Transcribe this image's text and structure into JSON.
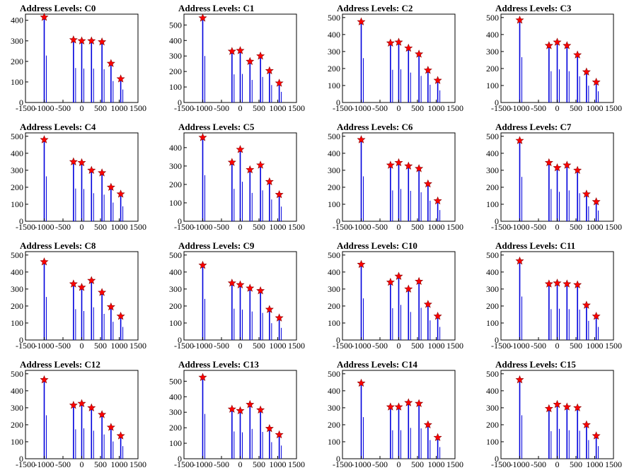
{
  "colors": {
    "spike": "#0000dd",
    "marker_fill": "#ff0000",
    "marker_stroke": "#880000",
    "axis": "#000000"
  },
  "chart_data": [
    {
      "type": "bar",
      "title": "Address Levels: C0",
      "xlim": [
        -1500,
        1500
      ],
      "ylim": [
        0,
        430
      ],
      "xticks": [
        -1500,
        -1000,
        -500,
        0,
        500,
        1000,
        1500
      ],
      "xtick_labels": [
        "-1500",
        "-1000",
        "-500",
        "0",
        "500",
        "1000",
        "1500"
      ],
      "yticks": [
        0,
        100,
        200,
        300,
        400
      ],
      "ytick_labels": [
        "0",
        "100",
        "200",
        "300",
        "400"
      ],
      "peaks": {
        "x": [
          -1000,
          -220,
          0,
          260,
          540,
          780,
          1040
        ],
        "y": [
          415,
          305,
          300,
          300,
          295,
          190,
          115
        ]
      }
    },
    {
      "type": "bar",
      "title": "Address Levels: C1",
      "xlim": [
        -1500,
        1500
      ],
      "ylim": [
        0,
        570
      ],
      "xticks": [
        -1500,
        -1000,
        -500,
        0,
        500,
        1000,
        1500
      ],
      "xtick_labels": [
        "-1500",
        "-1000",
        "-500",
        "0",
        "500",
        "1000",
        "1500"
      ],
      "yticks": [
        0,
        100,
        200,
        300,
        400,
        500
      ],
      "ytick_labels": [
        "0",
        "100",
        "200",
        "300",
        "400",
        "500"
      ],
      "peaks": {
        "x": [
          -1000,
          -220,
          0,
          260,
          540,
          780,
          1040
        ],
        "y": [
          545,
          330,
          335,
          265,
          300,
          205,
          125
        ]
      }
    },
    {
      "type": "bar",
      "title": "Address Levels: C2",
      "xlim": [
        -1500,
        1500
      ],
      "ylim": [
        0,
        520
      ],
      "xticks": [
        -1500,
        -1000,
        -500,
        0,
        500,
        1000,
        1500
      ],
      "xtick_labels": [
        "-1500",
        "-1000",
        "-500",
        "0",
        "500",
        "1000",
        "1500"
      ],
      "yticks": [
        0,
        100,
        200,
        300,
        400,
        500
      ],
      "ytick_labels": [
        "0",
        "100",
        "200",
        "300",
        "400",
        "500"
      ],
      "peaks": {
        "x": [
          -1000,
          -220,
          0,
          260,
          540,
          780,
          1040
        ],
        "y": [
          475,
          350,
          355,
          320,
          285,
          190,
          130
        ]
      }
    },
    {
      "type": "bar",
      "title": "Address Levels: C3",
      "xlim": [
        -1500,
        1500
      ],
      "ylim": [
        0,
        520
      ],
      "xticks": [
        -1500,
        -1000,
        -500,
        0,
        500,
        1000,
        1500
      ],
      "xtick_labels": [
        "-1500",
        "-1000",
        "-500",
        "0",
        "500",
        "1000",
        "1500"
      ],
      "yticks": [
        0,
        100,
        200,
        300,
        400,
        500
      ],
      "ytick_labels": [
        "0",
        "100",
        "200",
        "300",
        "400",
        "500"
      ],
      "peaks": {
        "x": [
          -1000,
          -220,
          0,
          260,
          540,
          780,
          1040
        ],
        "y": [
          485,
          335,
          355,
          335,
          280,
          180,
          120
        ]
      }
    },
    {
      "type": "bar",
      "title": "Address Levels: C4",
      "xlim": [
        -1500,
        1500
      ],
      "ylim": [
        0,
        520
      ],
      "xticks": [
        -1500,
        -1000,
        -500,
        0,
        500,
        1000,
        1500
      ],
      "xtick_labels": [
        "-1500",
        "-1000",
        "-500",
        "0",
        "500",
        "1000",
        "1500"
      ],
      "yticks": [
        0,
        100,
        200,
        300,
        400,
        500
      ],
      "ytick_labels": [
        "0",
        "100",
        "200",
        "300",
        "400",
        "500"
      ],
      "peaks": {
        "x": [
          -1000,
          -220,
          0,
          260,
          540,
          780,
          1040
        ],
        "y": [
          480,
          350,
          345,
          300,
          285,
          200,
          160
        ]
      }
    },
    {
      "type": "bar",
      "title": "Address Levels: C5",
      "xlim": [
        -1500,
        1500
      ],
      "ylim": [
        0,
        480
      ],
      "xticks": [
        -1500,
        -1000,
        -500,
        0,
        500,
        1000,
        1500
      ],
      "xtick_labels": [
        "-1500",
        "-1000",
        "-500",
        "0",
        "500",
        "1000",
        "1500"
      ],
      "yticks": [
        0,
        100,
        200,
        300,
        400
      ],
      "ytick_labels": [
        "0",
        "100",
        "200",
        "300",
        "400"
      ],
      "peaks": {
        "x": [
          -1000,
          -220,
          0,
          260,
          540,
          780,
          1040
        ],
        "y": [
          455,
          320,
          390,
          280,
          305,
          215,
          145
        ]
      }
    },
    {
      "type": "bar",
      "title": "Address Levels: C6",
      "xlim": [
        -1500,
        1500
      ],
      "ylim": [
        0,
        520
      ],
      "xticks": [
        -1500,
        -1000,
        -500,
        0,
        500,
        1000,
        1500
      ],
      "xtick_labels": [
        "-1500",
        "-1000",
        "-500",
        "0",
        "500",
        "1000",
        "1500"
      ],
      "yticks": [
        0,
        100,
        200,
        300,
        400,
        500
      ],
      "ytick_labels": [
        "0",
        "100",
        "200",
        "300",
        "400",
        "500"
      ],
      "peaks": {
        "x": [
          -1000,
          -220,
          0,
          260,
          540,
          780,
          1040
        ],
        "y": [
          480,
          330,
          345,
          325,
          310,
          220,
          120
        ]
      }
    },
    {
      "type": "bar",
      "title": "Address Levels: C7",
      "xlim": [
        -1500,
        1500
      ],
      "ylim": [
        0,
        520
      ],
      "xticks": [
        -1500,
        -1000,
        -500,
        0,
        500,
        1000,
        1500
      ],
      "xtick_labels": [
        "-1500",
        "-1000",
        "-500",
        "0",
        "500",
        "1000",
        "1500"
      ],
      "yticks": [
        0,
        100,
        200,
        300,
        400,
        500
      ],
      "ytick_labels": [
        "0",
        "100",
        "200",
        "300",
        "400",
        "500"
      ],
      "peaks": {
        "x": [
          -1000,
          -220,
          0,
          260,
          540,
          780,
          1040
        ],
        "y": [
          475,
          345,
          315,
          330,
          300,
          160,
          115
        ]
      }
    },
    {
      "type": "bar",
      "title": "Address Levels: C8",
      "xlim": [
        -1500,
        1500
      ],
      "ylim": [
        0,
        520
      ],
      "xticks": [
        -1500,
        -1000,
        -500,
        0,
        500,
        1000,
        1500
      ],
      "xtick_labels": [
        "-1500",
        "-1000",
        "-500",
        "0",
        "500",
        "1000",
        "1500"
      ],
      "yticks": [
        0,
        100,
        200,
        300,
        400,
        500
      ],
      "ytick_labels": [
        "0",
        "100",
        "200",
        "300",
        "400",
        "500"
      ],
      "peaks": {
        "x": [
          -1000,
          -220,
          0,
          260,
          540,
          780,
          1040
        ],
        "y": [
          460,
          330,
          310,
          350,
          280,
          195,
          140
        ]
      }
    },
    {
      "type": "bar",
      "title": "Address Levels: C9",
      "xlim": [
        -1500,
        1500
      ],
      "ylim": [
        0,
        520
      ],
      "xticks": [
        -1500,
        -1000,
        -500,
        0,
        500,
        1000,
        1500
      ],
      "xtick_labels": [
        "-1500",
        "-1000",
        "-500",
        "0",
        "500",
        "1000",
        "1500"
      ],
      "yticks": [
        0,
        100,
        200,
        300,
        400,
        500
      ],
      "ytick_labels": [
        "0",
        "100",
        "200",
        "300",
        "400",
        "500"
      ],
      "peaks": {
        "x": [
          -1000,
          -220,
          0,
          260,
          540,
          780,
          1040
        ],
        "y": [
          440,
          335,
          325,
          305,
          290,
          180,
          130
        ]
      }
    },
    {
      "type": "bar",
      "title": "Address Levels: C10",
      "xlim": [
        -1500,
        1500
      ],
      "ylim": [
        0,
        520
      ],
      "xticks": [
        -1500,
        -1000,
        -500,
        0,
        500,
        1000,
        1500
      ],
      "xtick_labels": [
        "-1500",
        "-1000",
        "-500",
        "0",
        "500",
        "1000",
        "1500"
      ],
      "yticks": [
        0,
        100,
        200,
        300,
        400,
        500
      ],
      "ytick_labels": [
        "0",
        "100",
        "200",
        "300",
        "400",
        "500"
      ],
      "peaks": {
        "x": [
          -1000,
          -220,
          0,
          260,
          540,
          780,
          1040
        ],
        "y": [
          445,
          340,
          375,
          300,
          345,
          210,
          140
        ]
      }
    },
    {
      "type": "bar",
      "title": "Address Levels: C11",
      "xlim": [
        -1500,
        1500
      ],
      "ylim": [
        0,
        520
      ],
      "xticks": [
        -1500,
        -1000,
        -500,
        0,
        500,
        1000,
        1500
      ],
      "xtick_labels": [
        "-1500",
        "-1000",
        "-500",
        "0",
        "500",
        "1000",
        "1500"
      ],
      "yticks": [
        0,
        100,
        200,
        300,
        400,
        500
      ],
      "ytick_labels": [
        "0",
        "100",
        "200",
        "300",
        "400",
        "500"
      ],
      "peaks": {
        "x": [
          -1000,
          -220,
          0,
          260,
          540,
          780,
          1040
        ],
        "y": [
          465,
          330,
          335,
          330,
          325,
          205,
          140
        ]
      }
    },
    {
      "type": "bar",
      "title": "Address Levels: C12",
      "xlim": [
        -1500,
        1500
      ],
      "ylim": [
        0,
        520
      ],
      "xticks": [
        -1500,
        -1000,
        -500,
        0,
        500,
        1000,
        1500
      ],
      "xtick_labels": [
        "-1500",
        "-1000",
        "-500",
        "0",
        "500",
        "1000",
        "1500"
      ],
      "yticks": [
        0,
        100,
        200,
        300,
        400,
        500
      ],
      "ytick_labels": [
        "0",
        "100",
        "200",
        "300",
        "400",
        "500"
      ],
      "peaks": {
        "x": [
          -1000,
          -220,
          0,
          260,
          540,
          780,
          1040
        ],
        "y": [
          465,
          315,
          325,
          300,
          260,
          185,
          135
        ]
      }
    },
    {
      "type": "bar",
      "title": "Address Levels: C13",
      "xlim": [
        -1500,
        1500
      ],
      "ylim": [
        0,
        570
      ],
      "xticks": [
        -1500,
        -1000,
        -500,
        0,
        500,
        1000,
        1500
      ],
      "xtick_labels": [
        "-1500",
        "-1000",
        "-500",
        "0",
        "500",
        "1000",
        "1500"
      ],
      "yticks": [
        0,
        100,
        200,
        300,
        400,
        500
      ],
      "ytick_labels": [
        "0",
        "100",
        "200",
        "300",
        "400",
        "500"
      ],
      "peaks": {
        "x": [
          -1000,
          -220,
          0,
          260,
          540,
          780,
          1040
        ],
        "y": [
          525,
          320,
          310,
          350,
          315,
          195,
          155
        ]
      }
    },
    {
      "type": "bar",
      "title": "Address Levels: C14",
      "xlim": [
        -1500,
        1500
      ],
      "ylim": [
        0,
        520
      ],
      "xticks": [
        -1500,
        -1000,
        -500,
        0,
        500,
        1000,
        1500
      ],
      "xtick_labels": [
        "-1500",
        "-1000",
        "-500",
        "0",
        "500",
        "1000",
        "1500"
      ],
      "yticks": [
        0,
        100,
        200,
        300,
        400,
        500
      ],
      "ytick_labels": [
        "0",
        "100",
        "200",
        "300",
        "400",
        "500"
      ],
      "peaks": {
        "x": [
          -1000,
          -220,
          0,
          260,
          540,
          780,
          1040
        ],
        "y": [
          445,
          305,
          305,
          330,
          325,
          200,
          125
        ]
      }
    },
    {
      "type": "bar",
      "title": "Address Levels: C15",
      "xlim": [
        -1500,
        1500
      ],
      "ylim": [
        0,
        520
      ],
      "xticks": [
        -1500,
        -1000,
        -500,
        0,
        500,
        1000,
        1500
      ],
      "xtick_labels": [
        "-1500",
        "-1000",
        "-500",
        "0",
        "500",
        "1000",
        "1500"
      ],
      "yticks": [
        0,
        100,
        200,
        300,
        400,
        500
      ],
      "ytick_labels": [
        "0",
        "100",
        "200",
        "300",
        "400",
        "500"
      ],
      "peaks": {
        "x": [
          -1000,
          -220,
          0,
          260,
          540,
          780,
          1040
        ],
        "y": [
          465,
          295,
          320,
          305,
          300,
          200,
          135
        ]
      }
    }
  ]
}
